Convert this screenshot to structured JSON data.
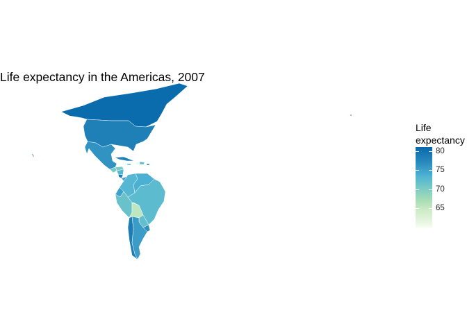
{
  "title": "Life expectancy in the Americas, 2007",
  "legend": {
    "title_line1": "Life",
    "title_line2": "expectancy",
    "ticks": [
      80,
      75,
      70,
      65
    ],
    "range": [
      60,
      81
    ],
    "low_color": "#f7fcf0",
    "high_color": "#0868ac"
  },
  "chart_data": {
    "type": "choropleth",
    "title": "Life expectancy in the Americas, 2007",
    "legend_title": "Life expectancy",
    "scale": "GnBu",
    "regions": [
      {
        "name": "Canada",
        "value": 80.7
      },
      {
        "name": "United States",
        "value": 78.2
      },
      {
        "name": "Mexico",
        "value": 76.2
      },
      {
        "name": "Guatemala",
        "value": 70.3
      },
      {
        "name": "Honduras",
        "value": 70.2
      },
      {
        "name": "Nicaragua",
        "value": 72.9
      },
      {
        "name": "Costa Rica",
        "value": 78.8
      },
      {
        "name": "Panama",
        "value": 75.5
      },
      {
        "name": "Cuba",
        "value": 78.3
      },
      {
        "name": "Haiti",
        "value": 60.9
      },
      {
        "name": "Dominican Republic",
        "value": 72.2
      },
      {
        "name": "Jamaica",
        "value": 72.6
      },
      {
        "name": "Puerto Rico",
        "value": 78.7
      },
      {
        "name": "Colombia",
        "value": 72.9
      },
      {
        "name": "Venezuela",
        "value": 73.7
      },
      {
        "name": "Ecuador",
        "value": 75.0
      },
      {
        "name": "Peru",
        "value": 71.4
      },
      {
        "name": "Brazil",
        "value": 72.4
      },
      {
        "name": "Bolivia",
        "value": 65.6
      },
      {
        "name": "Paraguay",
        "value": 71.8
      },
      {
        "name": "Chile",
        "value": 78.6
      },
      {
        "name": "Argentina",
        "value": 75.3
      },
      {
        "name": "Uruguay",
        "value": 76.4
      }
    ]
  }
}
